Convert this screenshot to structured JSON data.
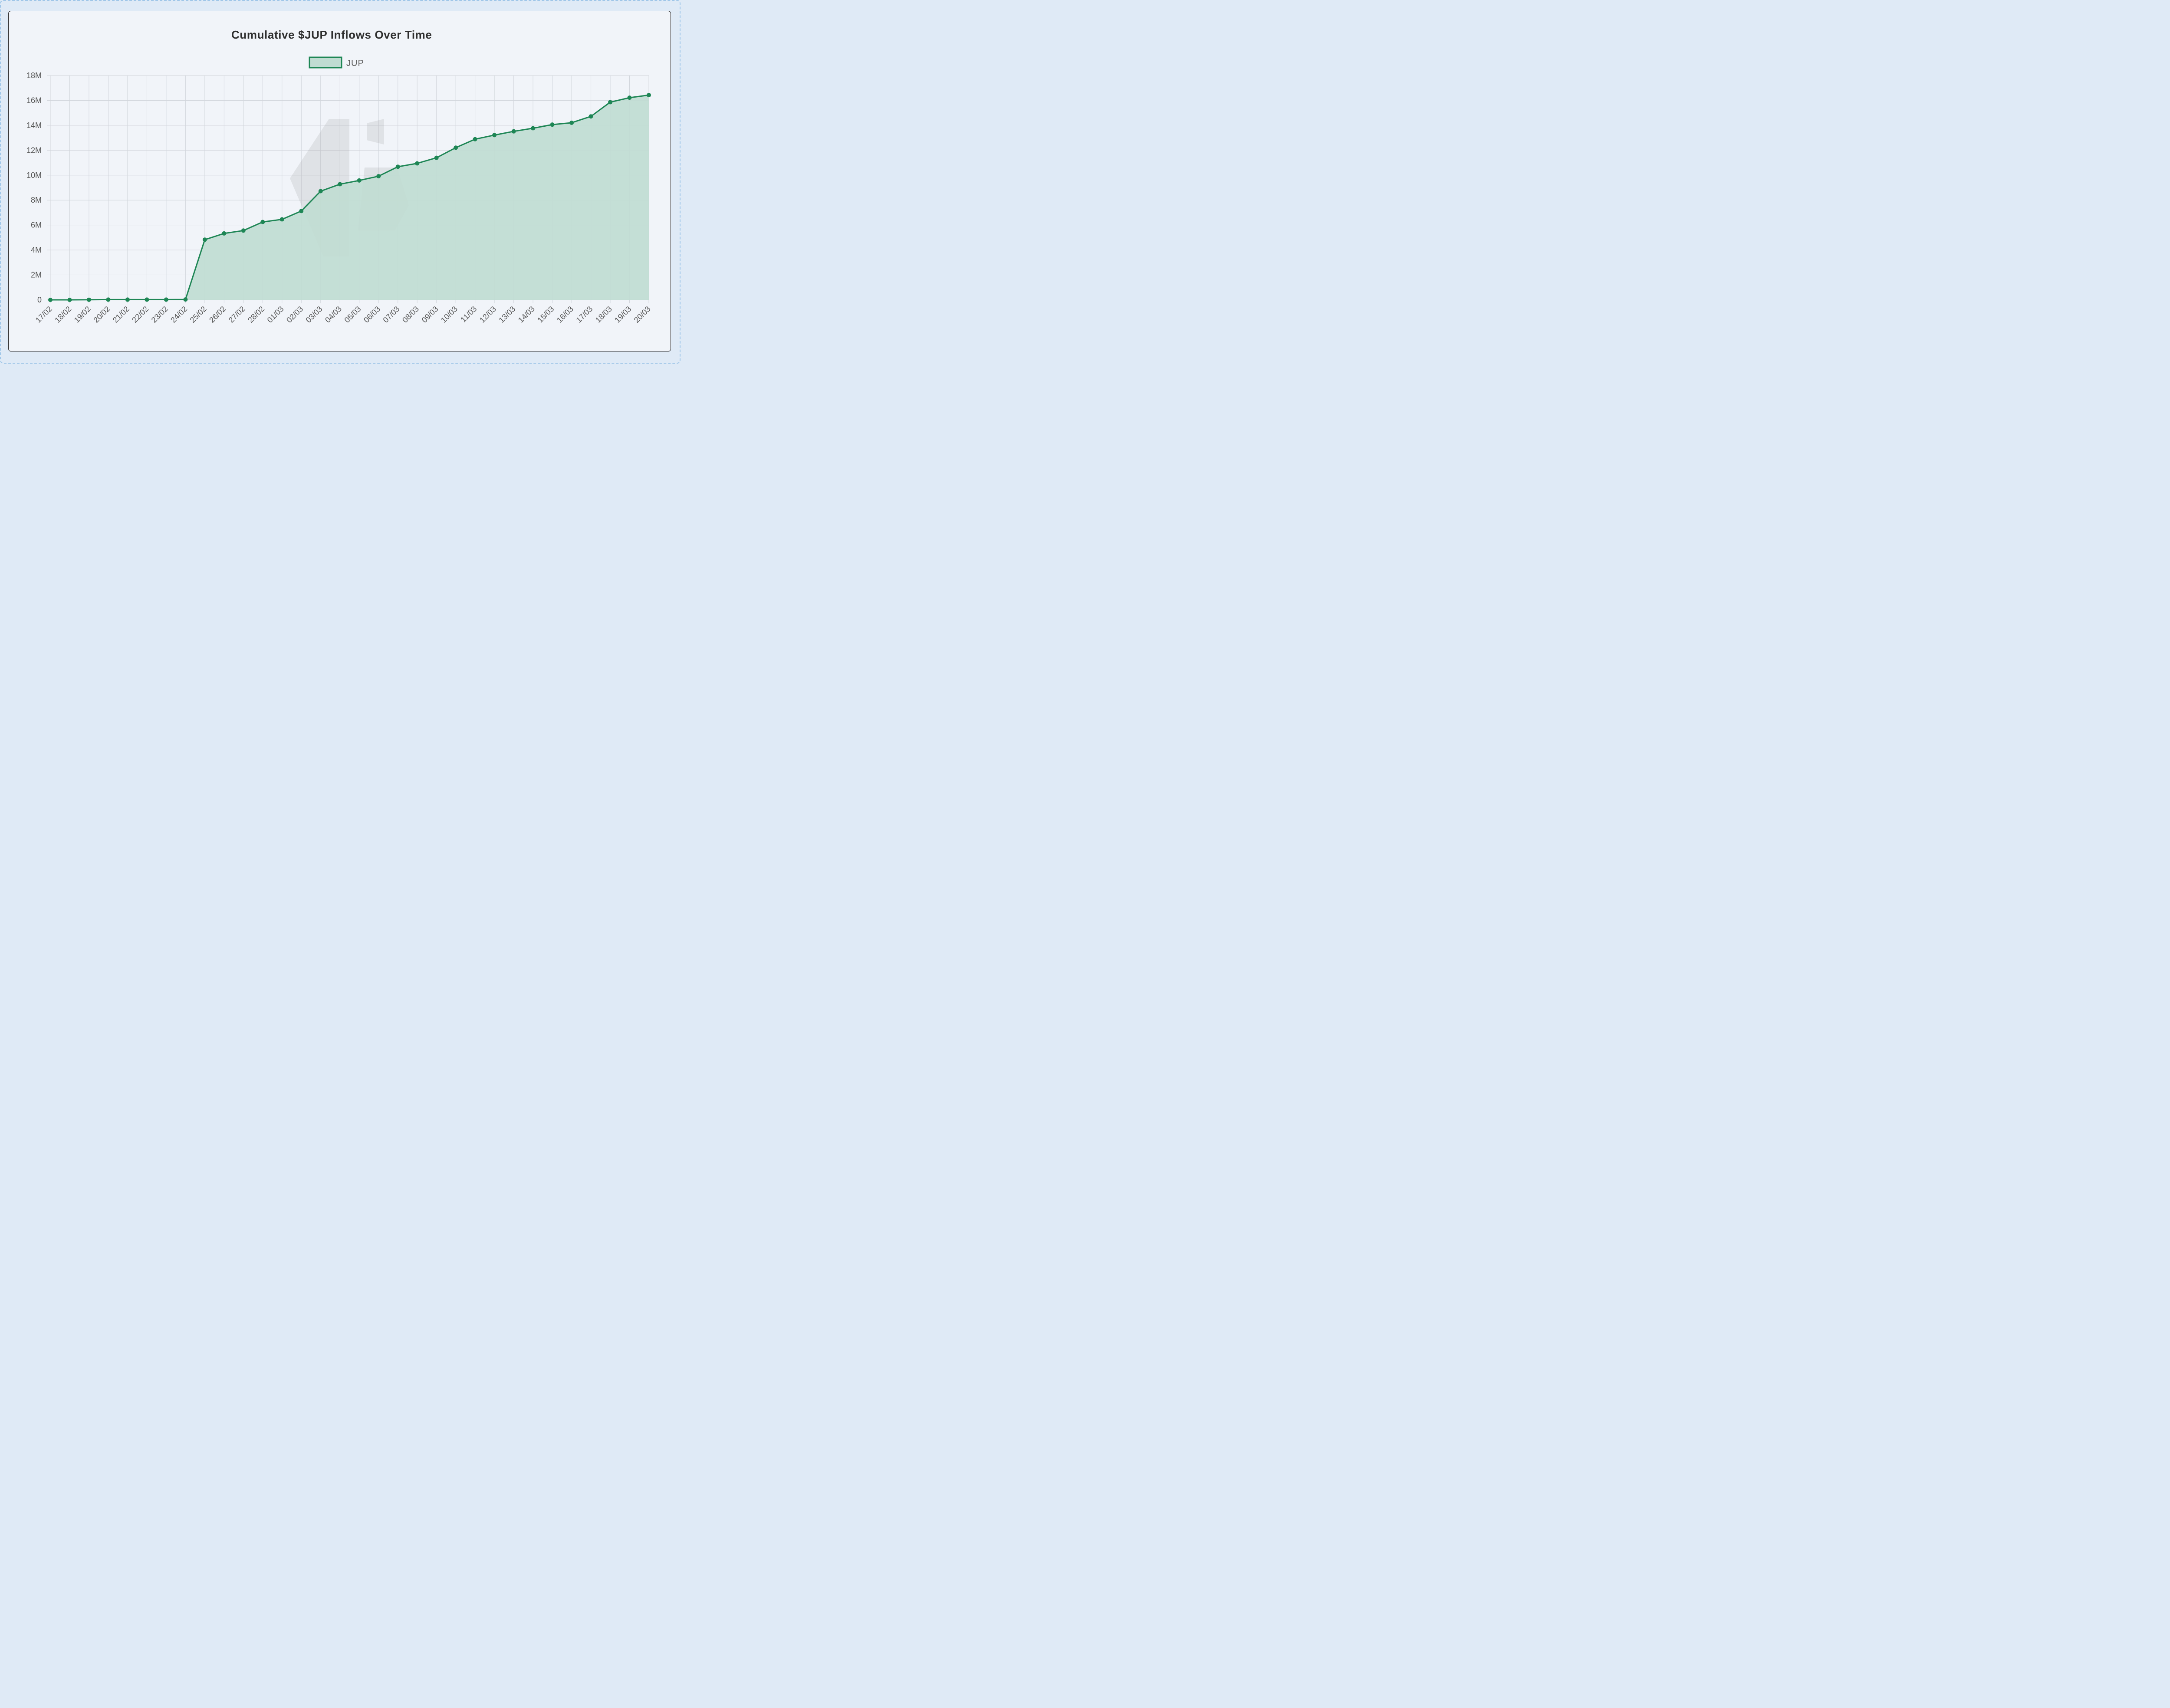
{
  "chart_data": {
    "type": "area",
    "title": "Cumulative $JUP Inflows Over Time",
    "legend": {
      "position": "top",
      "labels": [
        "JUP"
      ]
    },
    "grid": true,
    "categories": [
      "17/02",
      "18/02",
      "19/02",
      "20/02",
      "21/02",
      "22/02",
      "23/02",
      "24/02",
      "25/02",
      "26/02",
      "27/02",
      "28/02",
      "01/03",
      "02/03",
      "03/03",
      "04/03",
      "05/03",
      "06/03",
      "07/03",
      "08/03",
      "09/03",
      "10/03",
      "11/03",
      "12/03",
      "13/03",
      "14/03",
      "15/03",
      "16/03",
      "17/03",
      "18/03",
      "19/03",
      "20/03"
    ],
    "series": [
      {
        "name": "JUP",
        "values": [
          0,
          0,
          10000,
          20000,
          20000,
          20000,
          20000,
          30000,
          4830000,
          5330000,
          5560000,
          6250000,
          6460000,
          7130000,
          8720000,
          9280000,
          9580000,
          9920000,
          10680000,
          10950000,
          11400000,
          12210000,
          12890000,
          13220000,
          13520000,
          13770000,
          14060000,
          14210000,
          14720000,
          15860000,
          16220000,
          16430000
        ],
        "line_color": "#1e8655",
        "fill_color": "#c0dcd2"
      }
    ],
    "ylim": [
      0,
      18000000
    ],
    "yticks": [
      "0",
      "2M",
      "4M",
      "6M",
      "8M",
      "10M",
      "12M",
      "14M",
      "16M",
      "18M"
    ],
    "xlabel": "",
    "ylabel": ""
  }
}
